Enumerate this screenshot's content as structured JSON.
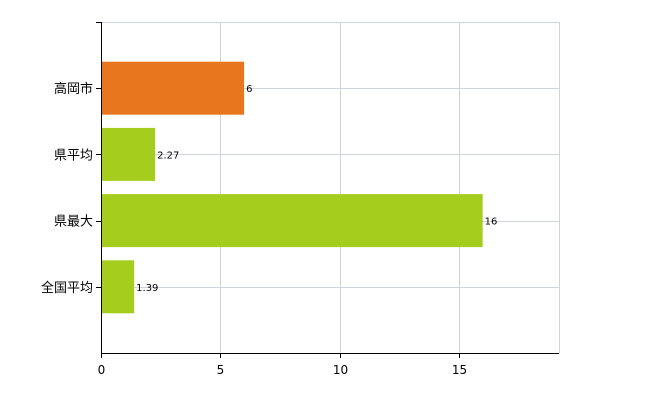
{
  "chart_data": {
    "type": "bar",
    "orientation": "horizontal",
    "categories": [
      "高岡市",
      "県平均",
      "県最大",
      "全国平均"
    ],
    "values": [
      6,
      2.27,
      16,
      1.39
    ],
    "data_labels": [
      "6",
      "2.27",
      "16",
      "1.39"
    ],
    "bar_colors": [
      "#e8761e",
      "#a5cd1e",
      "#a5cd1e",
      "#a5cd1e"
    ],
    "xlim": [
      0,
      19.2
    ],
    "x_ticks": [
      0,
      5,
      10,
      15
    ],
    "x_tick_labels": [
      "0",
      "5",
      "10",
      "15"
    ],
    "grid": true,
    "grid_color": "#cfd3da"
  }
}
